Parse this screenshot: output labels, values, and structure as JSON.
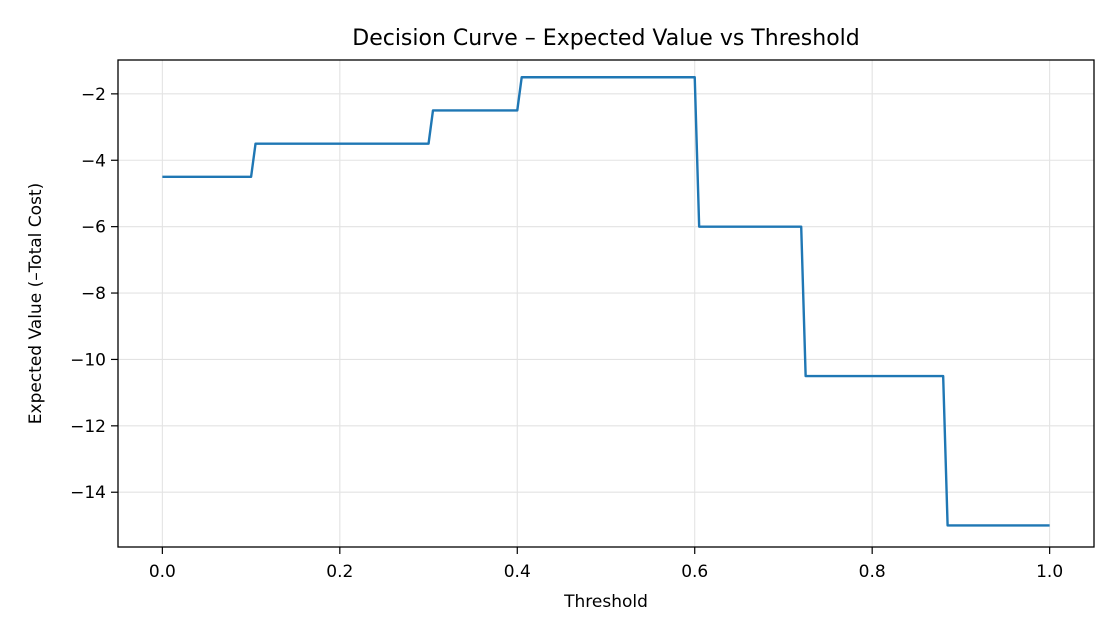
{
  "chart_data": {
    "type": "line",
    "title": "Decision Curve – Expected Value vs Threshold",
    "xlabel": "Threshold",
    "ylabel": "Expected Value (–Total Cost)",
    "xlim": [
      -0.05,
      1.05
    ],
    "ylim": [
      -15.65,
      -0.98
    ],
    "xticks": [
      0.0,
      0.2,
      0.4,
      0.6,
      0.8,
      1.0
    ],
    "xtick_labels": [
      "0.0",
      "0.2",
      "0.4",
      "0.6",
      "0.8",
      "1.0"
    ],
    "yticks": [
      -2,
      -4,
      -6,
      -8,
      -10,
      -12,
      -14
    ],
    "ytick_labels": [
      "−2",
      "−4",
      "−6",
      "−8",
      "−10",
      "−12",
      "−14"
    ],
    "grid": true,
    "legend": "none",
    "series": [
      {
        "color": "#1f77b4",
        "x": [
          0.0,
          0.1,
          0.105,
          0.3,
          0.305,
          0.4,
          0.405,
          0.6,
          0.605,
          0.72,
          0.725,
          0.88,
          0.885,
          1.0
        ],
        "y": [
          -4.5,
          -4.5,
          -3.5,
          -3.5,
          -2.5,
          -2.5,
          -1.5,
          -1.5,
          -6.0,
          -6.0,
          -10.5,
          -10.5,
          -15.0,
          -15.0
        ]
      }
    ]
  }
}
